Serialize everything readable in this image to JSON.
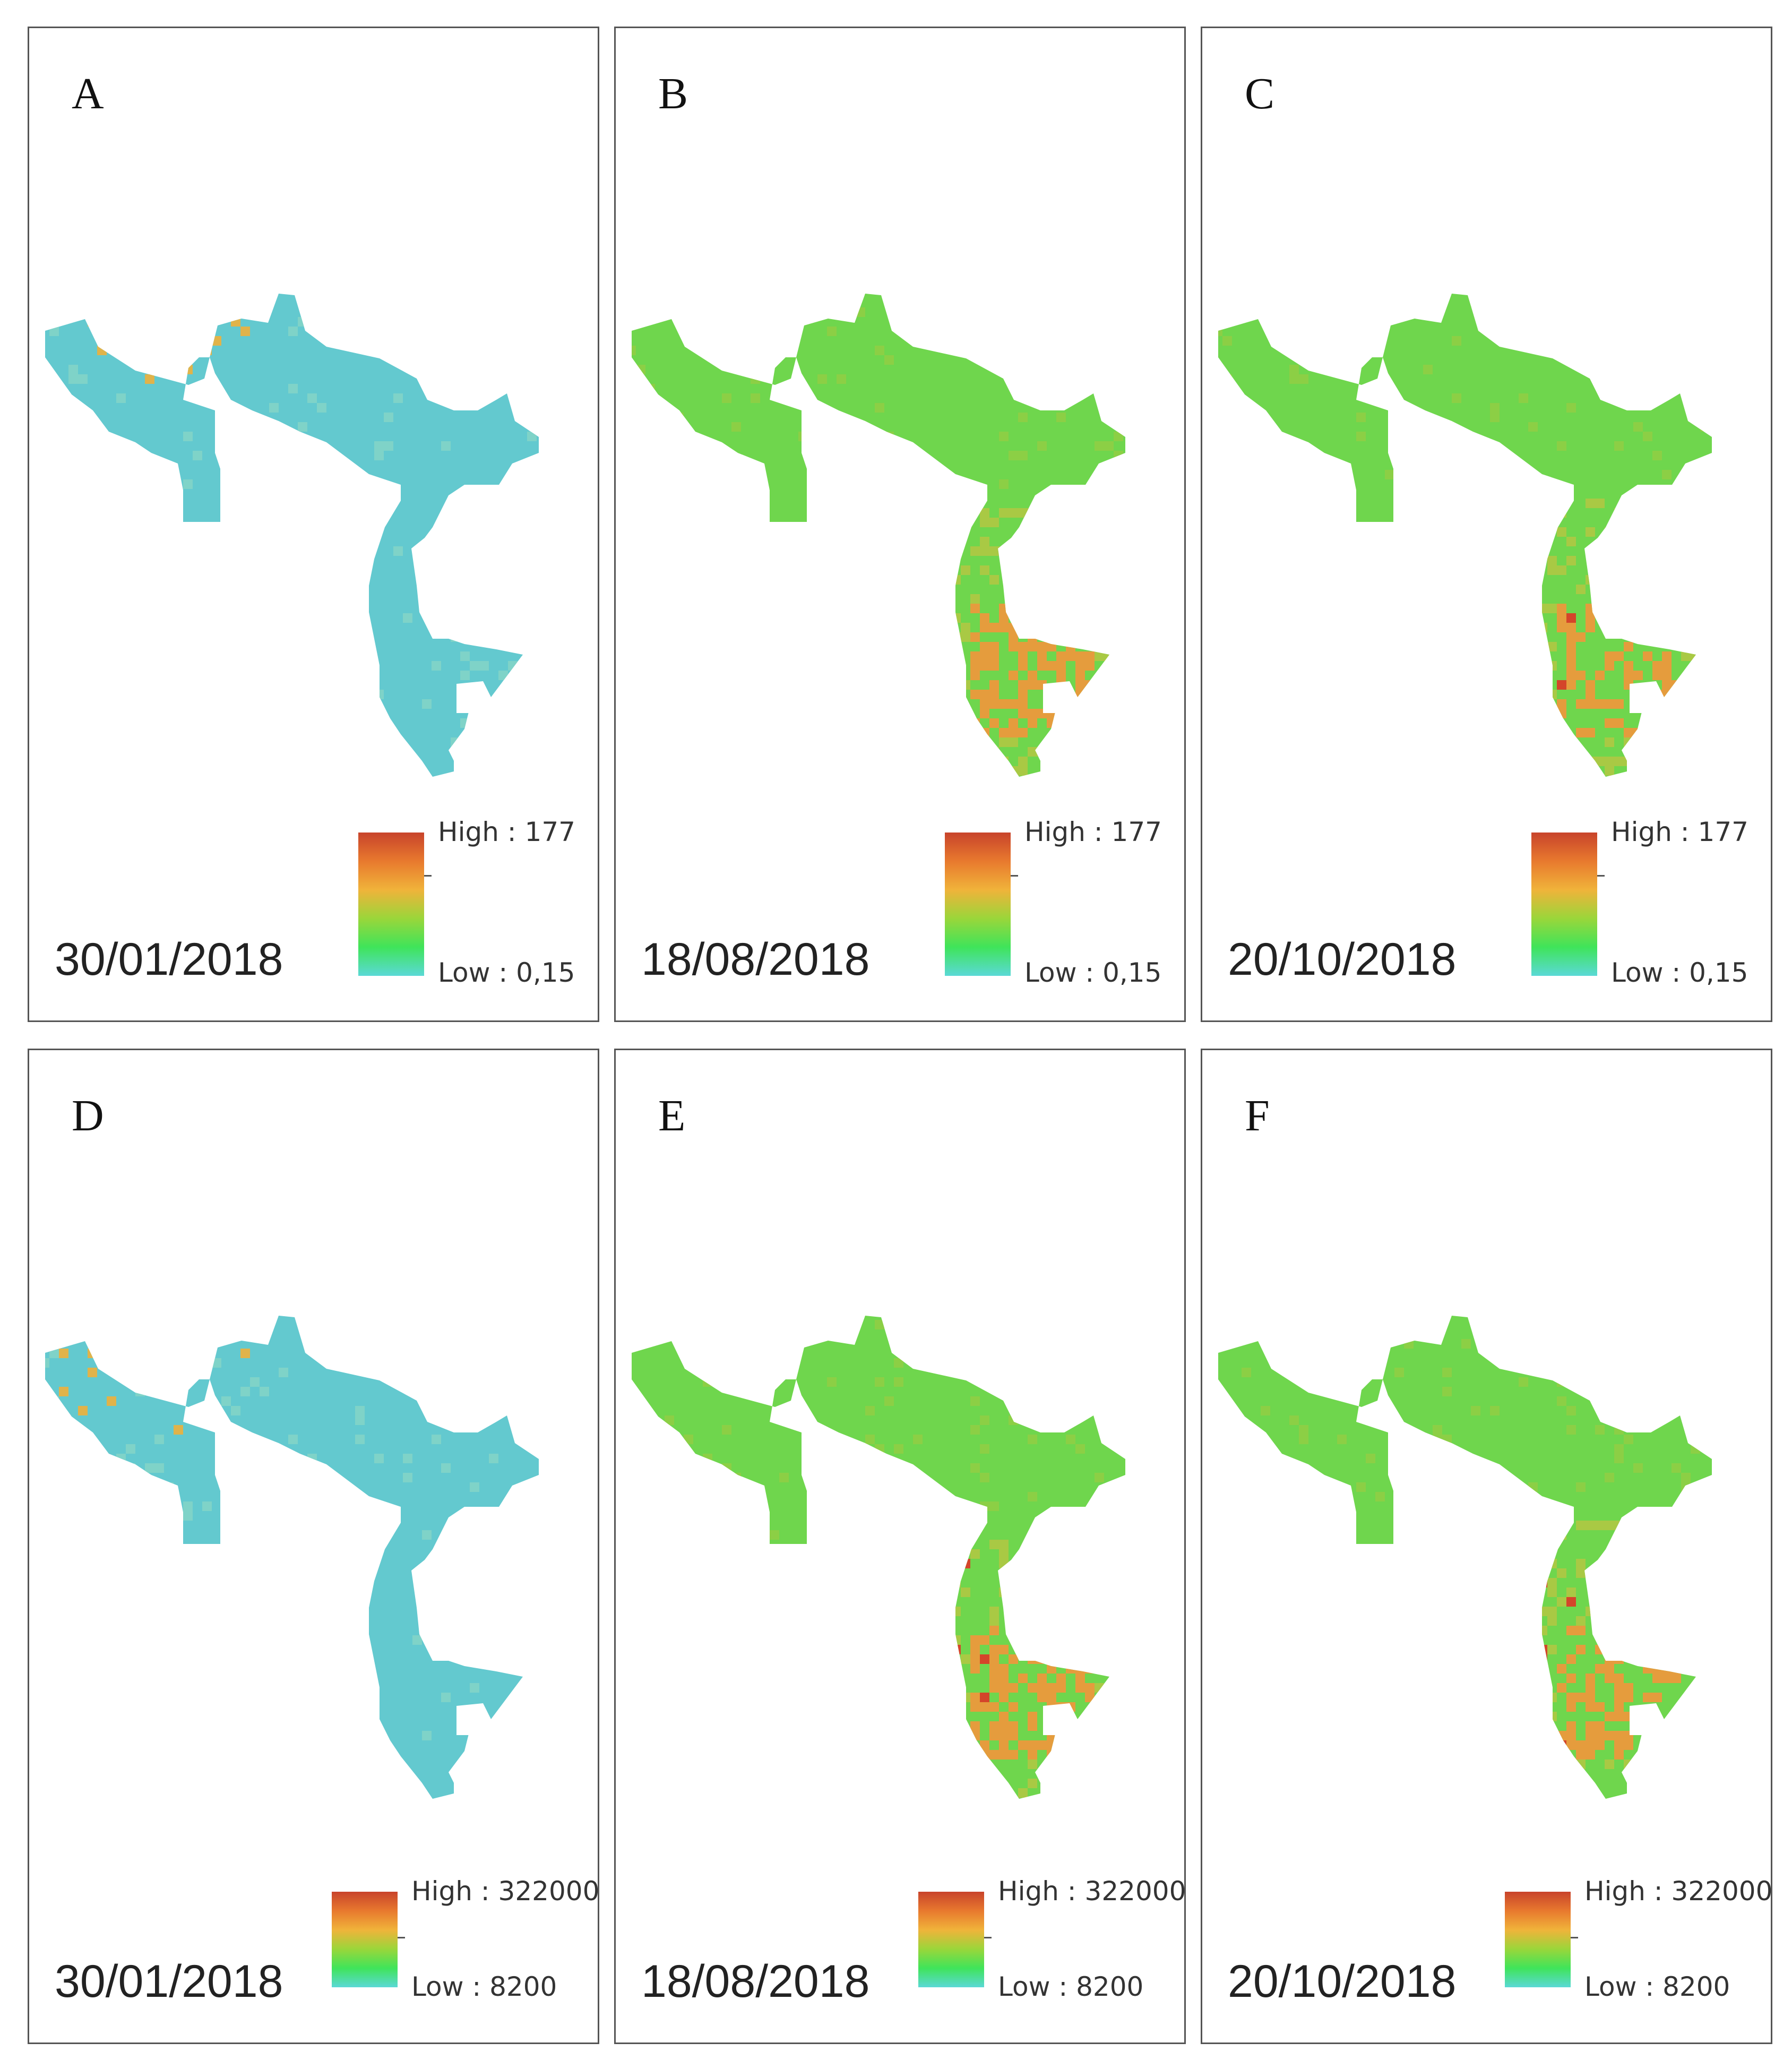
{
  "panels": [
    {
      "letter": "A",
      "date": "30/01/2018",
      "legend_high": "High : 177",
      "legend_low": "Low : 0,15",
      "scheme": "low"
    },
    {
      "letter": "B",
      "date": "18/08/2018",
      "legend_high": "High : 177",
      "legend_low": "Low : 0,15",
      "scheme": "b"
    },
    {
      "letter": "C",
      "date": "20/10/2018",
      "legend_high": "High : 177",
      "legend_low": "Low : 0,15",
      "scheme": "c"
    },
    {
      "letter": "D",
      "date": "30/01/2018",
      "legend_high": "High : 322000",
      "legend_low": "Low : 8200",
      "scheme": "low"
    },
    {
      "letter": "E",
      "date": "18/08/2018",
      "legend_high": "High : 322000",
      "legend_low": "Low : 8200",
      "scheme": "b"
    },
    {
      "letter": "F",
      "date": "20/10/2018",
      "legend_high": "High : 322000",
      "legend_low": "Low : 8200",
      "scheme": "c"
    }
  ],
  "colors": {
    "low": "#63c9cf",
    "green": "#6fd64d",
    "orange": "#e59c3d",
    "red": "#d4452a",
    "legend_gradient": [
      "#c8432b",
      "#e8792e",
      "#f0b33a",
      "#9ad63a",
      "#3fe45a",
      "#5ad9d6"
    ]
  }
}
